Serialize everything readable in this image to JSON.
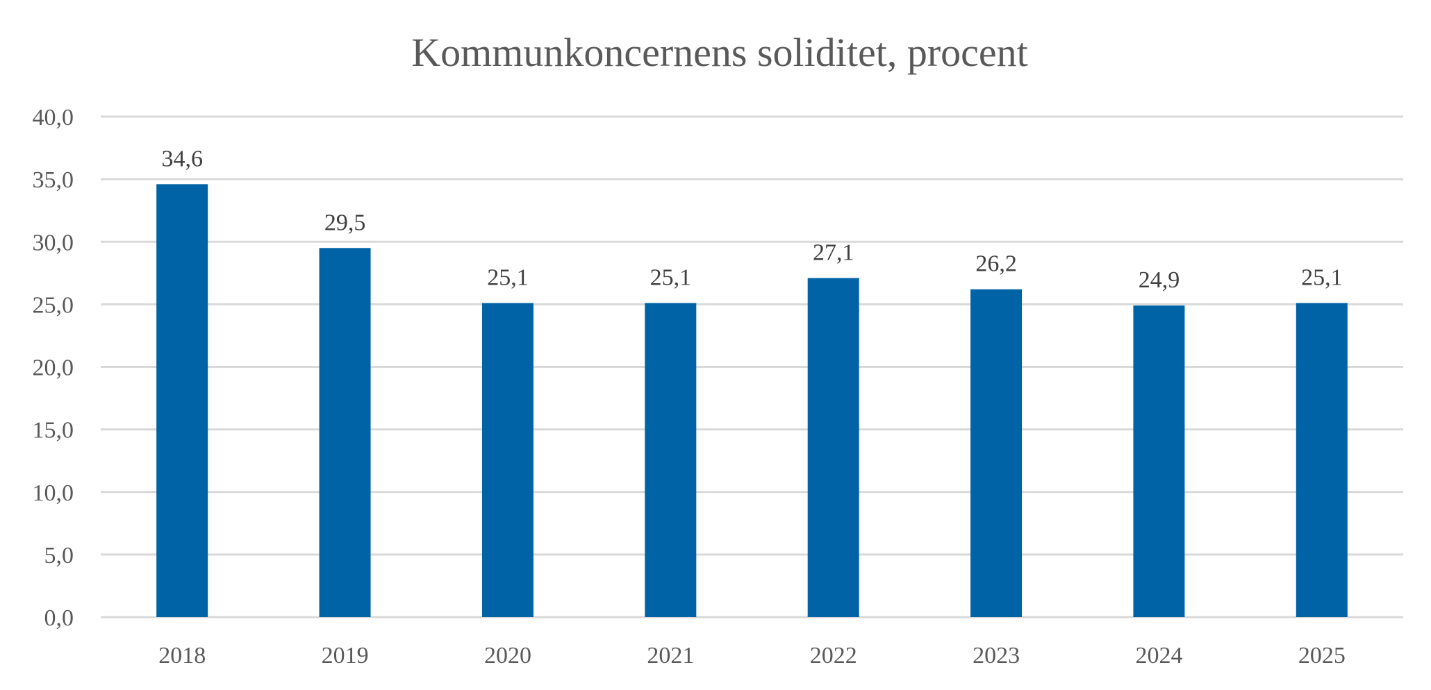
{
  "chart_data": {
    "type": "bar",
    "title": "Kommunkoncernens soliditet, procent",
    "categories": [
      "2018",
      "2019",
      "2020",
      "2021",
      "2022",
      "2023",
      "2024",
      "2025"
    ],
    "values": [
      34.6,
      29.5,
      25.1,
      25.1,
      27.1,
      26.2,
      24.9,
      25.1
    ],
    "data_labels": [
      "34,6",
      "29,5",
      "25,1",
      "25,1",
      "27,1",
      "26,2",
      "24,9",
      "25,1"
    ],
    "y_ticks": [
      "0,0",
      "5,0",
      "10,0",
      "15,0",
      "20,0",
      "25,0",
      "30,0",
      "35,0",
      "40,0"
    ],
    "ylim": [
      0,
      40
    ],
    "xlabel": "",
    "ylabel": "",
    "grid": true,
    "legend": "none",
    "colors": {
      "bar": "#0063A6",
      "grid": "#D9D9D9",
      "text": "#595959",
      "label": "#404040"
    }
  }
}
